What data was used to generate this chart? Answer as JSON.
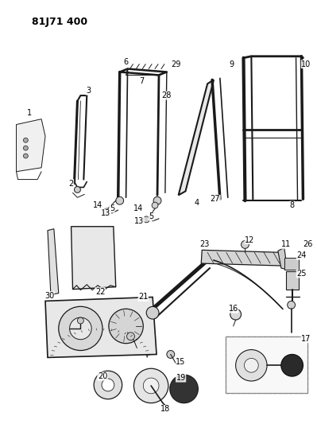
{
  "title": "81J71 400",
  "bg_color": "#ffffff",
  "line_color": "#1a1a1a",
  "fig_width": 3.99,
  "fig_height": 5.33,
  "dpi": 100
}
